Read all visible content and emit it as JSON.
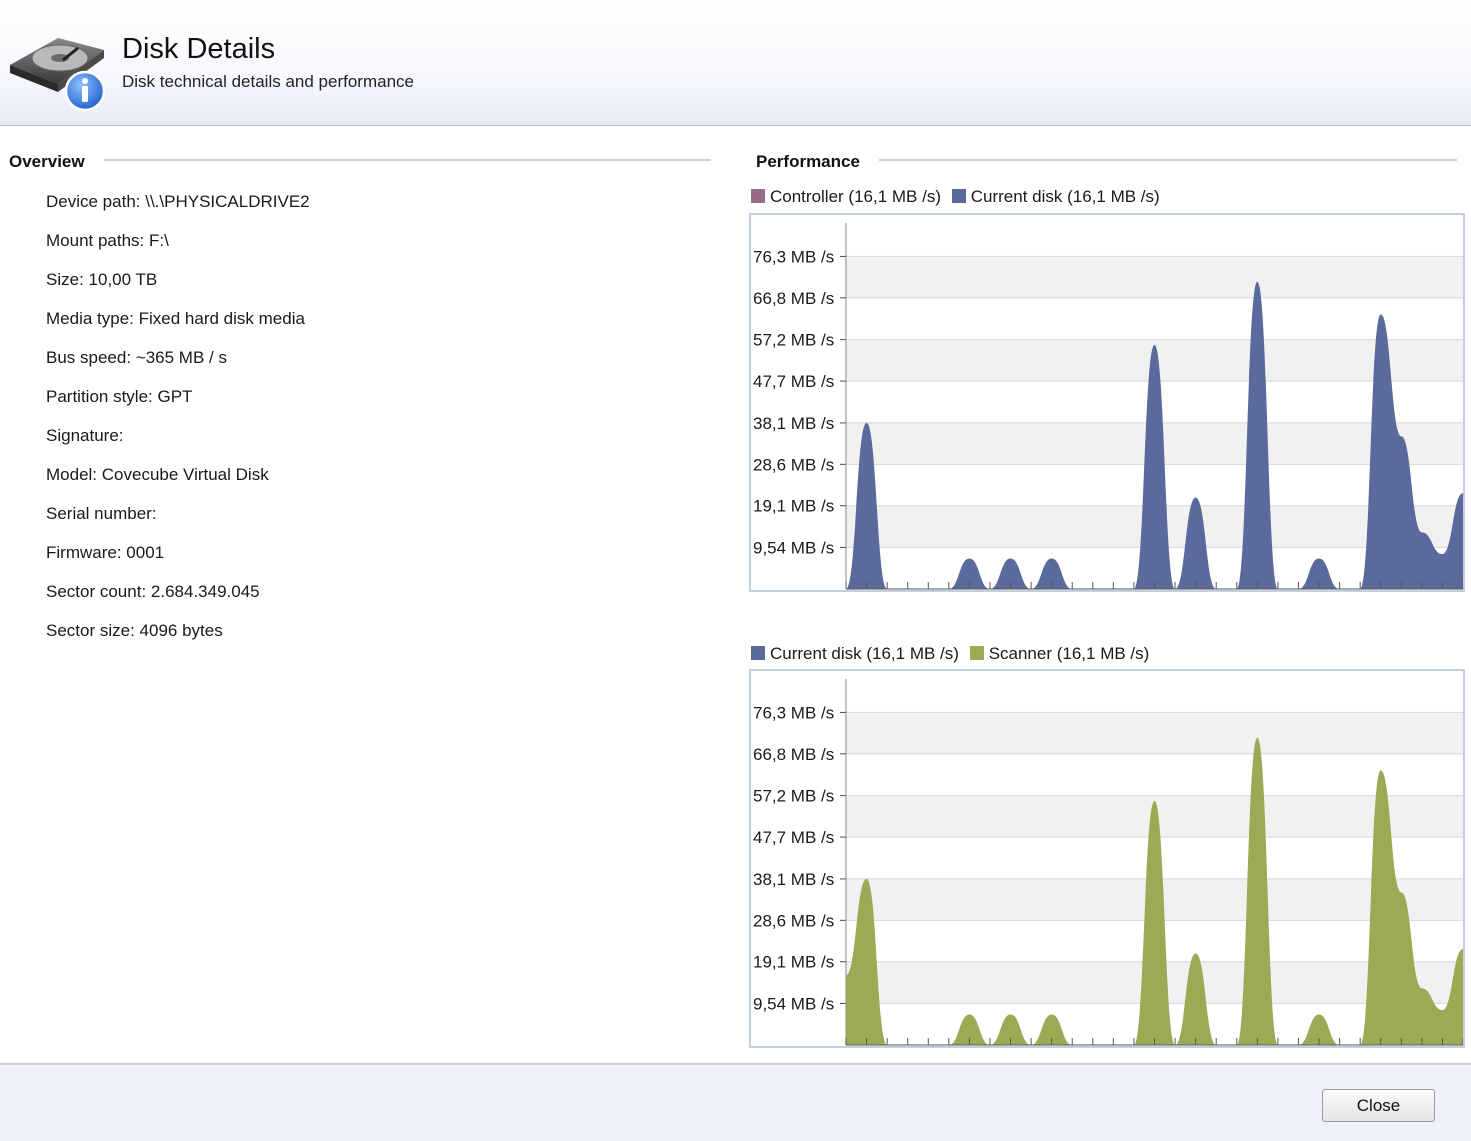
{
  "window": {
    "title": "Disk Details",
    "subtitle": "Disk technical details and performance",
    "icon": "disk-info-icon"
  },
  "overview": {
    "title": "Overview",
    "rows": [
      {
        "label": "Device path:",
        "value": "\\\\.\\PHYSICALDRIVE2"
      },
      {
        "label": "Mount paths:",
        "value": "F:\\"
      },
      {
        "label": "Size:",
        "value": "10,00 TB"
      },
      {
        "label": "Media type:",
        "value": "Fixed hard disk media"
      },
      {
        "label": "Bus speed:",
        "value": "~365 MB / s"
      },
      {
        "label": "Partition style:",
        "value": "GPT"
      },
      {
        "label": "Signature:",
        "value": ""
      },
      {
        "label": "Model:",
        "value": "Covecube Virtual Disk"
      },
      {
        "label": "Serial number:",
        "value": ""
      },
      {
        "label": "Firmware:",
        "value": "0001"
      },
      {
        "label": "Sector count:",
        "value": "2.684.349.045"
      },
      {
        "label": "Sector size:",
        "value": "4096 bytes"
      }
    ]
  },
  "performance": {
    "title": "Performance"
  },
  "colors": {
    "controller": "#9a6a8a",
    "current_disk": "#5a6a9c",
    "scanner": "#9daa55",
    "grid_band": "#f1f1f1",
    "grid_line": "#d8d8d8"
  },
  "chart_data": [
    {
      "type": "area",
      "legend": [
        {
          "name": "Controller",
          "label": "Controller (16,1 MB /s)",
          "color": "#9a6a8a"
        },
        {
          "name": "Current disk",
          "label": "Current disk (16,1 MB /s)",
          "color": "#5a6a9c"
        }
      ],
      "ylim": [
        0,
        85.8
      ],
      "yticks": [
        76.3,
        66.8,
        57.2,
        47.7,
        38.1,
        28.6,
        19.1,
        9.54
      ],
      "ytick_labels": [
        "76,3 MB /s",
        "66,8 MB /s",
        "57,2 MB /s",
        "47,7 MB /s",
        "38,1 MB /s",
        "28,6 MB /s",
        "19,1 MB /s",
        "9,54 MB /s"
      ],
      "x_tick_count": 30,
      "series": [
        {
          "name": "Current disk",
          "color": "#5a6a9c",
          "x": [
            0,
            1,
            2,
            3,
            4,
            5,
            6,
            7,
            8,
            9,
            10,
            11,
            12,
            13,
            14,
            15,
            16,
            17,
            18,
            19,
            20,
            21,
            22,
            23,
            24,
            25,
            26,
            27,
            28,
            29,
            30
          ],
          "values": [
            0,
            38.1,
            0,
            0,
            0,
            0,
            7,
            0,
            7,
            0,
            7,
            0,
            0,
            0,
            0,
            56,
            0,
            21,
            0,
            0,
            70.5,
            0,
            0,
            7,
            0,
            0,
            63,
            35,
            13,
            8,
            22
          ]
        }
      ]
    },
    {
      "type": "area",
      "legend": [
        {
          "name": "Current disk",
          "label": "Current disk (16,1 MB /s)",
          "color": "#5a6a9c"
        },
        {
          "name": "Scanner",
          "label": "Scanner (16,1 MB /s)",
          "color": "#9daa55"
        }
      ],
      "ylim": [
        0,
        85.8
      ],
      "yticks": [
        76.3,
        66.8,
        57.2,
        47.7,
        38.1,
        28.6,
        19.1,
        9.54
      ],
      "ytick_labels": [
        "76,3 MB /s",
        "66,8 MB /s",
        "57,2 MB /s",
        "47,7 MB /s",
        "38,1 MB /s",
        "28,6 MB /s",
        "19,1 MB /s",
        "9,54 MB /s"
      ],
      "x_tick_count": 30,
      "series": [
        {
          "name": "Scanner",
          "color": "#9daa55",
          "x": [
            0,
            1,
            2,
            3,
            4,
            5,
            6,
            7,
            8,
            9,
            10,
            11,
            12,
            13,
            14,
            15,
            16,
            17,
            18,
            19,
            20,
            21,
            22,
            23,
            24,
            25,
            26,
            27,
            28,
            29,
            30
          ],
          "values": [
            16,
            38.1,
            0,
            0,
            0,
            0,
            7,
            0,
            7,
            0,
            7,
            0,
            0,
            0,
            0,
            56,
            0,
            21,
            0,
            0,
            70.5,
            0,
            0,
            7,
            0,
            0,
            63,
            35,
            13,
            8,
            22
          ]
        }
      ]
    }
  ],
  "footer": {
    "close_label": "Close"
  }
}
